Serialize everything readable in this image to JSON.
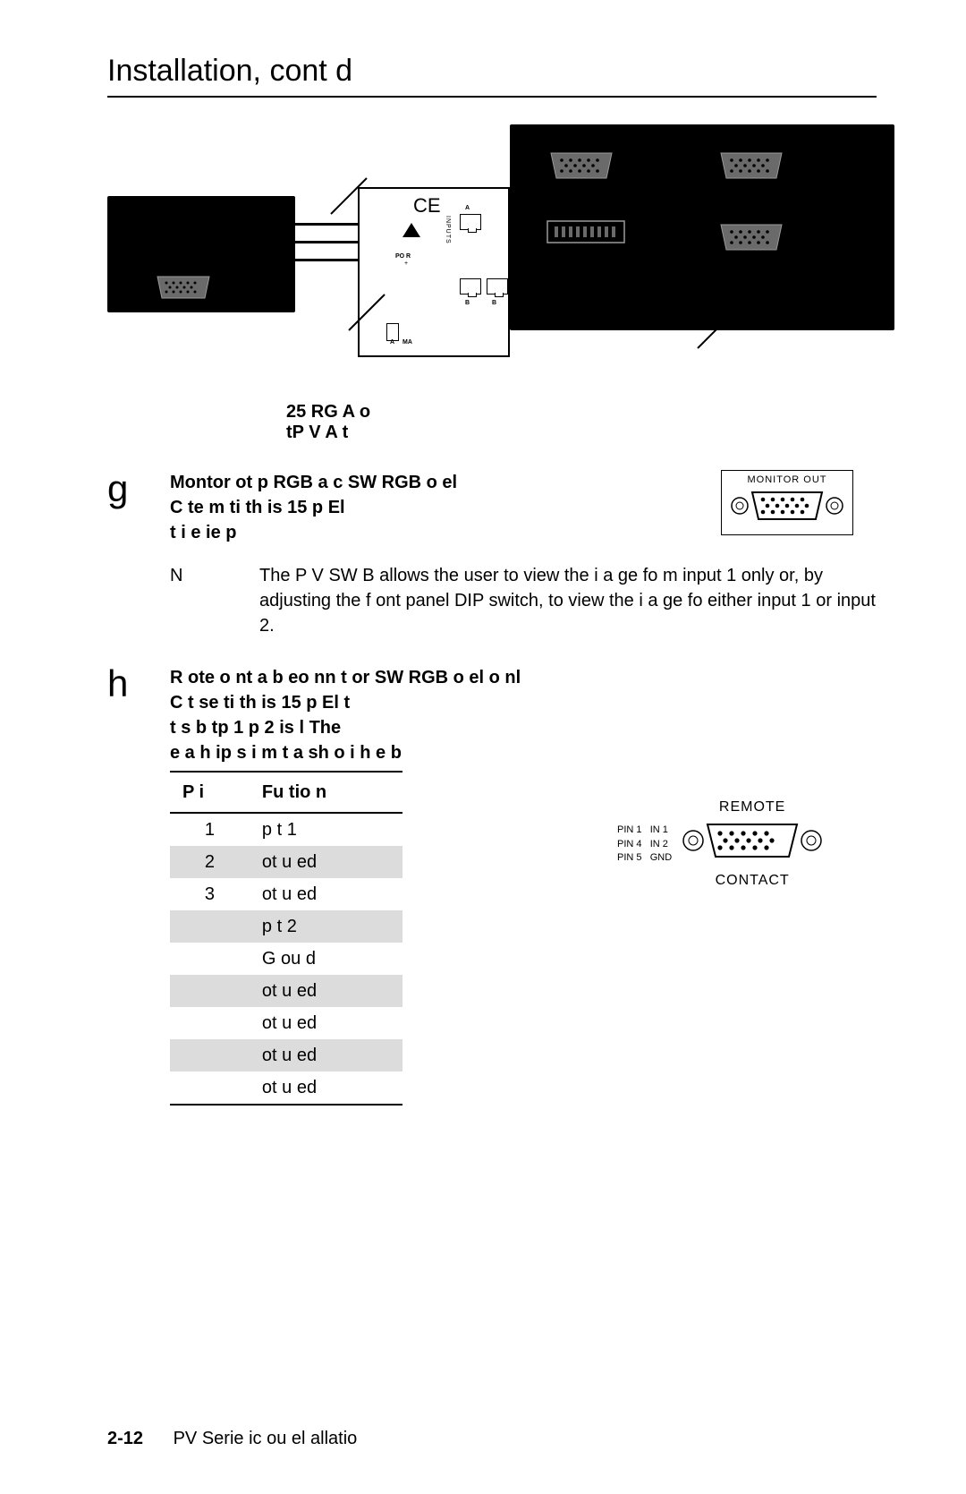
{
  "page": {
    "title": "Installation, cont d",
    "footer_page": "2-12",
    "footer_text": "PV Serie ic ou el allatio"
  },
  "diagram": {
    "power_label": "PO  R",
    "ma_label": "MA",
    "letters": {
      "a": "A",
      "b": "B",
      "inputs": "INPUTS"
    },
    "caption_line1": "25  RG  A   o",
    "caption_line2": "tP V  A  t",
    "left_port_color": "#6a6a6a",
    "right_port_color": "#6a6a6a"
  },
  "step_g": {
    "letter": "g",
    "bold1": "Montor ot p RGB  a c SW RGB  o el",
    "bold2": "C te m  ti th  is 15 p El",
    "bold3": "t i e  ie p"
  },
  "note": {
    "label": "N",
    "text": "The P V SW B  allows the user to view the i a ge fo m input 1 only or, by adjusting the f ont panel DIP switch, to view the i a ge fo  either input 1 or input 2."
  },
  "step_h": {
    "letter": "h",
    "bold1": "R ote  o nt a b eo nn  t or SW RGB  o el o nl",
    "bold2": "C  t se  ti th  is 15 p El  t",
    "bold3": "t s b  tp 1  p 2  is l   The",
    "bold4": "e a  h  ip s i m t  a  sh o i h  e b"
  },
  "pin_table": {
    "headers": [
      "P i",
      "Fu tio       n"
    ],
    "rows": [
      {
        "pin": "1",
        "fn": "p t 1",
        "shade": false
      },
      {
        "pin": "2",
        "fn": "ot u ed",
        "shade": true
      },
      {
        "pin": "3",
        "fn": "ot u ed",
        "shade": false
      },
      {
        "pin": "",
        "fn": "p t 2",
        "shade": true
      },
      {
        "pin": "",
        "fn": "G ou d",
        "shade": false
      },
      {
        "pin": "",
        "fn": "ot u ed",
        "shade": true
      },
      {
        "pin": "",
        "fn": "ot u ed",
        "shade": false
      },
      {
        "pin": "",
        "fn": "ot u ed",
        "shade": true
      },
      {
        "pin": "",
        "fn": "ot u ed",
        "shade": false
      }
    ]
  },
  "monitor_out": {
    "label_top": "MONITOR OUT"
  },
  "remote": {
    "label_top": "REMOTE",
    "label_bottom": "CONTACT",
    "pins": [
      {
        "l": "PIN 1",
        "r": "IN 1"
      },
      {
        "l": "PIN 4",
        "r": "IN 2"
      },
      {
        "l": "PIN 5",
        "r": "GND"
      }
    ]
  },
  "colors": {
    "shade": "#dcdcdc",
    "text": "#000000",
    "bg": "#ffffff"
  }
}
